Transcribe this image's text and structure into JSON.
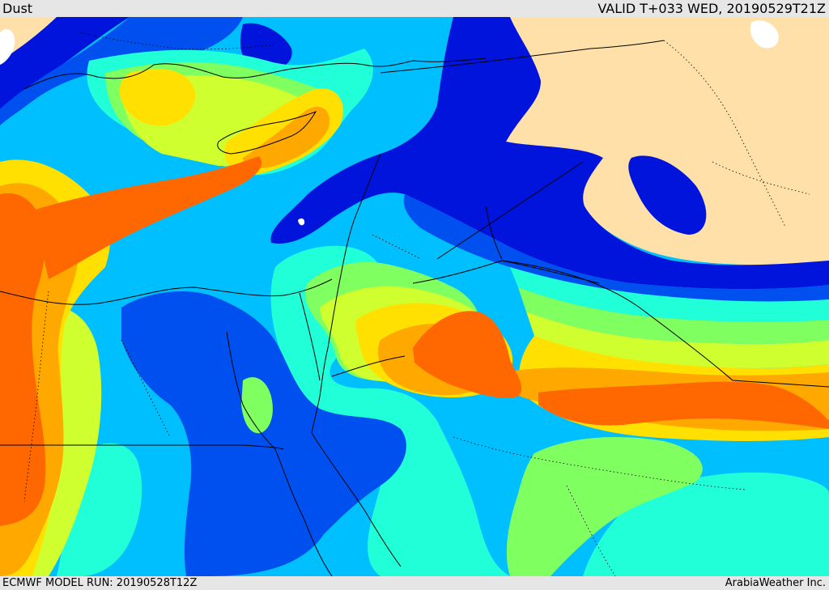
{
  "header": {
    "field_title": "Dust",
    "valid_time": "VALID T+033 WED, 20190529T21Z"
  },
  "footer": {
    "model_run": "ECMWF MODEL RUN: 20190528T12Z",
    "provider": "ArabiaWeather Inc."
  },
  "palette": {
    "land_background": "#ffe0a8",
    "level_1_dark_blue": "#0014dc",
    "level_2_blue": "#0050f0",
    "level_3_sky_blue": "#00bfff",
    "level_4_cyan": "#20ffd8",
    "level_5_green": "#80ff60",
    "level_6_yellow_green": "#d0ff30",
    "level_7_yellow": "#ffe000",
    "level_8_orange": "#ffa800",
    "level_9_dark_orange": "#ff6800",
    "level_10_red_orange": "#ff3000",
    "borders": "#000000",
    "coastlines": "#000000",
    "inland_boundaries_dotted": "#000000"
  }
}
